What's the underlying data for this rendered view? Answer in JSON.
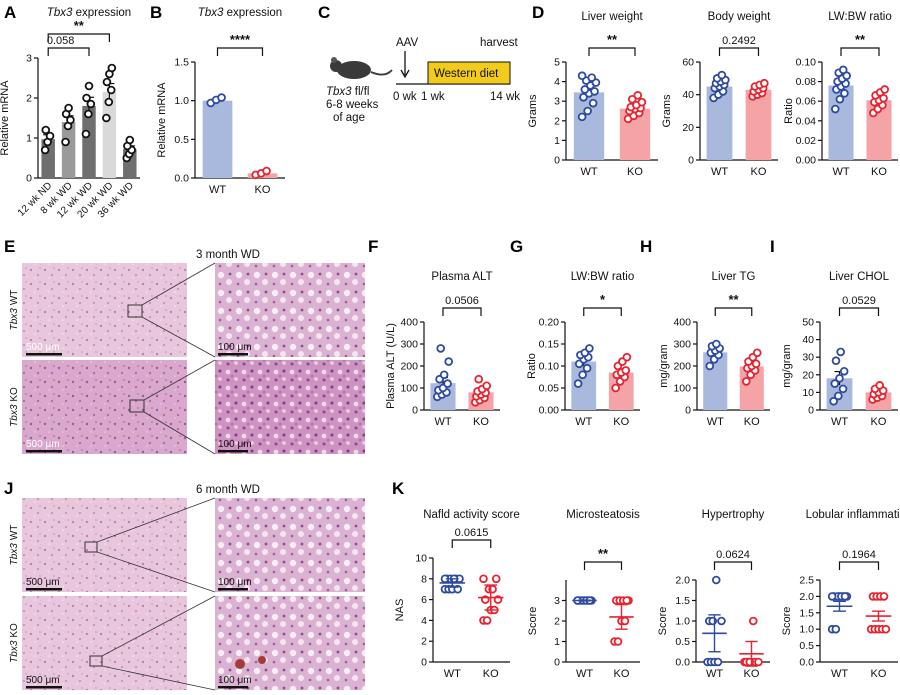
{
  "colors": {
    "wt_bar": "#a9b8dd",
    "wt_point": "#2e4aa0",
    "ko_bar": "#f4a3a7",
    "ko_point": "#e8222e",
    "dark_bar": "#6f6f6f",
    "mid_bar": "#9a9a9a",
    "light_bar": "#d9d9d9",
    "diet_box": "#f3cc1b"
  },
  "panels": {
    "A": "A",
    "B": "B",
    "C": "C",
    "D": "D",
    "E": "E",
    "F": "F",
    "G": "G",
    "H": "H",
    "I": "I",
    "J": "J",
    "K": "K"
  },
  "icons": {
    "mouse": "mouse-icon",
    "arrow": "arrow-down-icon"
  },
  "schematic": {
    "aav": "AAV",
    "harvest": "harvest",
    "diet": "Western diet",
    "t0": "0 wk",
    "t1": "1 wk",
    "t14": "14 wk",
    "mouse_gene": "Tbx3",
    "mouse_line1": " fl/fl",
    "mouse_line2": "6-8 weeks",
    "mouse_line3": "of age"
  },
  "histology": {
    "E_title": "3 month WD",
    "J_title": "6 month WD",
    "gene": "Tbx3",
    "wt": "WT",
    "ko": "KO",
    "scale_low": "500 μm",
    "scale_high": "100 μm"
  },
  "chart_data": [
    {
      "id": "A",
      "type": "bar",
      "title_gene": "Tbx3",
      "title_rest": " expression",
      "ylabel": "Relative mRNA",
      "ylim": [
        0,
        3
      ],
      "yticks": [
        0,
        1,
        2,
        3
      ],
      "categories": [
        "12 wk ND",
        "8 wk WD",
        "12 wk WD",
        "20 wk WD",
        "36 wk WD"
      ],
      "values": [
        0.97,
        1.4,
        1.8,
        2.15,
        0.72
      ],
      "points": [
        [
          0.7,
          0.9,
          1.05,
          1.2
        ],
        [
          0.9,
          1.3,
          1.45,
          1.6,
          1.75
        ],
        [
          1.1,
          1.6,
          1.85,
          2.0,
          2.3
        ],
        [
          1.5,
          1.9,
          2.2,
          2.4,
          2.6,
          2.75
        ],
        [
          0.5,
          0.6,
          0.7,
          0.8,
          0.95
        ]
      ],
      "sig": [
        {
          "from": 0,
          "to": 3,
          "label": "**"
        },
        {
          "from": 0,
          "to": 2,
          "label": "0.058"
        }
      ]
    },
    {
      "id": "B",
      "type": "bar",
      "title_gene": "Tbx3",
      "title_rest": " expression",
      "ylabel": "Relative mRNA",
      "ylim": [
        0,
        1.5
      ],
      "yticks": [
        0.0,
        0.5,
        1.0,
        1.5
      ],
      "categories": [
        "WT",
        "KO"
      ],
      "values": [
        1.0,
        0.06
      ],
      "points": [
        [
          0.97,
          1.01,
          1.04
        ],
        [
          0.04,
          0.06,
          0.09
        ]
      ],
      "sig": [
        {
          "from": 0,
          "to": 1,
          "label": "****"
        }
      ]
    },
    {
      "id": "D1",
      "type": "bar",
      "title": "Liver weight",
      "ylabel": "Grams",
      "ylim": [
        0,
        5
      ],
      "yticks": [
        0,
        1,
        2,
        3,
        4,
        5
      ],
      "categories": [
        "WT",
        "KO"
      ],
      "values": [
        3.45,
        2.62
      ],
      "points": [
        [
          2.2,
          2.5,
          2.9,
          3.2,
          3.4,
          3.5,
          3.6,
          3.8,
          3.95,
          4.05,
          4.2,
          4.3
        ],
        [
          2.1,
          2.25,
          2.4,
          2.5,
          2.6,
          2.65,
          2.7,
          2.8,
          2.95,
          3.1,
          3.3
        ]
      ],
      "sig": [
        {
          "from": 0,
          "to": 1,
          "label": "**"
        }
      ]
    },
    {
      "id": "D2",
      "type": "bar",
      "title": "Body weight",
      "ylabel": "Grams",
      "ylim": [
        0,
        60
      ],
      "yticks": [
        0,
        20,
        40,
        60
      ],
      "categories": [
        "WT",
        "KO"
      ],
      "values": [
        45,
        43
      ],
      "points": [
        [
          38,
          40,
          42,
          44,
          45,
          46,
          47,
          48,
          49,
          50,
          52
        ],
        [
          39,
          40,
          41,
          42,
          43,
          44,
          45,
          46,
          47
        ]
      ],
      "sig": [
        {
          "from": 0,
          "to": 1,
          "label": "0.2492"
        }
      ]
    },
    {
      "id": "D3",
      "type": "bar",
      "title": "LW:BW ratio",
      "ylabel": "Ratio",
      "ylim": [
        0,
        0.1
      ],
      "yticks": [
        0.0,
        0.02,
        0.04,
        0.06,
        0.08,
        0.1
      ],
      "categories": [
        "WT",
        "KO"
      ],
      "values": [
        0.076,
        0.061
      ],
      "points": [
        [
          0.052,
          0.062,
          0.068,
          0.072,
          0.075,
          0.078,
          0.08,
          0.083,
          0.086,
          0.089,
          0.092
        ],
        [
          0.048,
          0.052,
          0.056,
          0.059,
          0.061,
          0.063,
          0.066,
          0.069,
          0.072
        ]
      ],
      "sig": [
        {
          "from": 0,
          "to": 1,
          "label": "**"
        }
      ]
    },
    {
      "id": "F",
      "type": "bar",
      "title": "Plasma ALT",
      "ylabel": "Plasma ALT (U/L)",
      "ylim": [
        0,
        400
      ],
      "yticks": [
        0,
        100,
        200,
        300,
        400
      ],
      "categories": [
        "WT",
        "KO"
      ],
      "values": [
        122,
        80
      ],
      "points": [
        [
          60,
          70,
          80,
          90,
          100,
          120,
          140,
          160,
          220,
          280
        ],
        [
          35,
          45,
          55,
          62,
          70,
          78,
          85,
          95,
          110,
          140
        ]
      ],
      "sig": [
        {
          "from": 0,
          "to": 1,
          "label": "0.0506"
        }
      ]
    },
    {
      "id": "G",
      "type": "bar",
      "title": "LW:BW ratio",
      "ylabel": "Ratio",
      "ylim": [
        0,
        0.2
      ],
      "yticks": [
        0.0,
        0.05,
        0.1,
        0.15,
        0.2
      ],
      "categories": [
        "WT",
        "KO"
      ],
      "values": [
        0.11,
        0.085
      ],
      "points": [
        [
          0.06,
          0.08,
          0.095,
          0.105,
          0.115,
          0.12,
          0.125,
          0.13,
          0.14
        ],
        [
          0.05,
          0.065,
          0.075,
          0.08,
          0.085,
          0.09,
          0.1,
          0.11,
          0.12
        ]
      ],
      "sig": [
        {
          "from": 0,
          "to": 1,
          "label": "*"
        }
      ]
    },
    {
      "id": "H",
      "type": "bar",
      "title": "Liver TG",
      "ylabel": "mg/gram",
      "ylim": [
        0,
        400
      ],
      "yticks": [
        0,
        100,
        200,
        300,
        400
      ],
      "categories": [
        "WT",
        "KO"
      ],
      "values": [
        262,
        198
      ],
      "points": [
        [
          200,
          230,
          250,
          260,
          270,
          280,
          290,
          300
        ],
        [
          130,
          160,
          180,
          190,
          200,
          210,
          220,
          240,
          260
        ]
      ],
      "sig": [
        {
          "from": 0,
          "to": 1,
          "label": "**"
        }
      ]
    },
    {
      "id": "I",
      "type": "bar",
      "title": "Liver CHOL",
      "ylabel": "mg/gram",
      "ylim": [
        0,
        50
      ],
      "yticks": [
        0,
        10,
        20,
        30,
        40,
        50
      ],
      "categories": [
        "WT",
        "KO"
      ],
      "values": [
        18,
        10
      ],
      "points": [
        [
          5,
          8,
          12,
          15,
          18,
          22,
          28,
          33
        ],
        [
          6,
          7,
          8,
          9,
          10,
          11,
          12,
          14
        ]
      ],
      "sig": [
        {
          "from": 0,
          "to": 1,
          "label": "0.0529"
        }
      ]
    },
    {
      "id": "K1",
      "type": "scatter",
      "title": "Nafld activity score",
      "ylabel": "NAS",
      "ylim": [
        0,
        10
      ],
      "yticks": [
        0,
        2,
        4,
        6,
        8,
        10
      ],
      "categories": [
        "WT",
        "KO"
      ],
      "means": [
        7.6,
        6.2
      ],
      "sems": [
        0.4,
        1.2
      ],
      "points": [
        [
          7,
          7,
          7,
          8,
          8,
          8,
          8,
          8,
          7,
          8
        ],
        [
          4,
          4,
          5,
          5,
          6,
          6,
          7,
          7,
          8,
          8
        ]
      ],
      "sig": [
        {
          "from": 0,
          "to": 1,
          "label": "0.0615"
        }
      ]
    },
    {
      "id": "K2",
      "type": "scatter",
      "title": "Microsteatosis",
      "ylabel": "Score",
      "ylim": [
        0,
        4
      ],
      "yticks": [
        0,
        1,
        2,
        3
      ],
      "categories": [
        "WT",
        "KO"
      ],
      "means": [
        3.0,
        2.2
      ],
      "sems": [
        0.02,
        0.6
      ],
      "points": [
        [
          3,
          3,
          3,
          3,
          3,
          3,
          3,
          3,
          3,
          3
        ],
        [
          1,
          1,
          2,
          2,
          3,
          3,
          3,
          3,
          3
        ]
      ],
      "sig": [
        {
          "from": 0,
          "to": 1,
          "label": "**"
        }
      ]
    },
    {
      "id": "K3",
      "type": "scatter",
      "title": "Hypertrophy",
      "ylabel": "Score",
      "ylim": [
        0,
        2
      ],
      "yticks": [
        0.0,
        0.5,
        1.0,
        1.5,
        2.0
      ],
      "categories": [
        "WT",
        "KO"
      ],
      "means": [
        0.7,
        0.2
      ],
      "sems": [
        0.45,
        0.3
      ],
      "points": [
        [
          0,
          0,
          0,
          0,
          1,
          1,
          1,
          2
        ],
        [
          0,
          0,
          0,
          0,
          0,
          0,
          0,
          1
        ]
      ],
      "sig": [
        {
          "from": 0,
          "to": 1,
          "label": "0.0624"
        }
      ]
    },
    {
      "id": "K4",
      "type": "scatter",
      "title": "Lobular inflammation",
      "ylabel": "Score",
      "ylim": [
        0,
        2.5
      ],
      "yticks": [
        0.0,
        0.5,
        1.0,
        1.5,
        2.0,
        2.5
      ],
      "categories": [
        "WT",
        "KO"
      ],
      "means": [
        1.7,
        1.4
      ],
      "sems": [
        0.15,
        0.15
      ],
      "points": [
        [
          1,
          1,
          2,
          2,
          2,
          2,
          2,
          2,
          2,
          2
        ],
        [
          1,
          1,
          1,
          1,
          1,
          2,
          2,
          2,
          2
        ]
      ],
      "sig": [
        {
          "from": 0,
          "to": 1,
          "label": "0.1964"
        }
      ]
    }
  ]
}
